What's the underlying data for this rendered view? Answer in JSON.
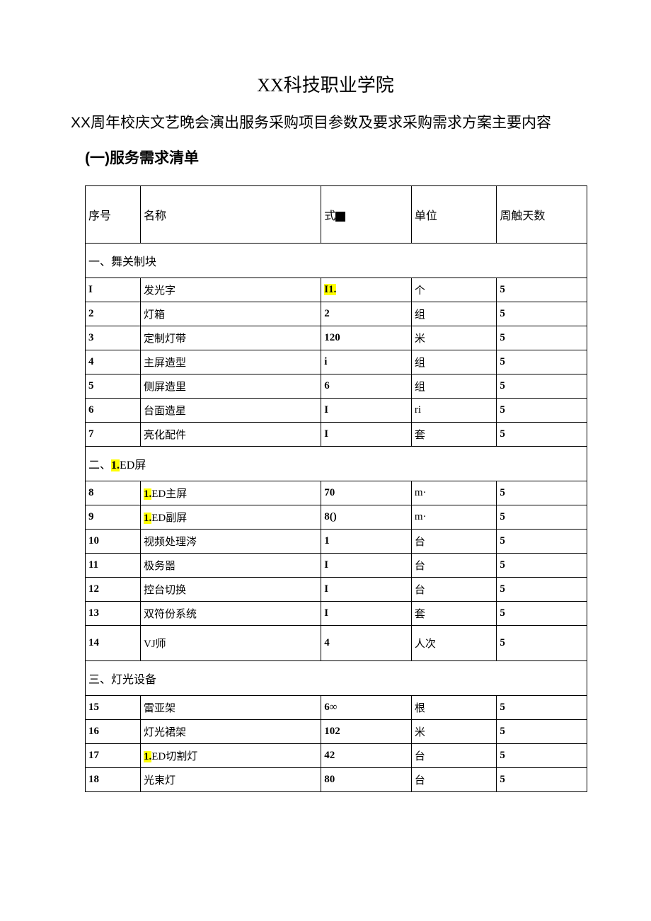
{
  "document": {
    "title_main": "XX科技职业学院",
    "title_sub": "XX周年校庆文艺晚会演出服务采购项目参数及要求采购需求方案主要内容",
    "section_label": "(一)服务需求清单",
    "table": {
      "background_color": "#ffffff",
      "border_color": "#000000",
      "highlight_color": "#ffff00",
      "text_color": "#000000",
      "columns": {
        "seq": "序号",
        "name": "名称",
        "qty_prefix": "式",
        "unit": "单位",
        "days": "周触天数"
      },
      "sections": [
        {
          "title": "一、舞关制块",
          "rows": [
            {
              "seq": "I",
              "name": "发光字",
              "qty": "I1.",
              "qty_highlight": true,
              "unit": "个",
              "days": "5"
            },
            {
              "seq": "2",
              "name": "灯箱",
              "qty": "2",
              "unit": "组",
              "days": "5"
            },
            {
              "seq": "3",
              "name": "定制灯带",
              "qty": "120",
              "unit": "米",
              "days": "5"
            },
            {
              "seq": "4",
              "name": "主屏造型",
              "qty": "i",
              "unit": "组",
              "days": "5"
            },
            {
              "seq": "5",
              "name": "侧屏造里",
              "qty": "6",
              "unit": "组",
              "days": "5"
            },
            {
              "seq": "6",
              "name": "台面造星",
              "qty": "I",
              "unit": "ri",
              "days": "5"
            },
            {
              "seq": "7",
              "name": "亮化配件",
              "qty": "I",
              "unit": "套",
              "days": "5"
            }
          ]
        },
        {
          "title_prefix": "二、",
          "title_highlight": "1.",
          "title_suffix": "ED屏",
          "rows": [
            {
              "seq": "8",
              "name_highlight": "1.",
              "name_suffix": "ED主屏",
              "qty": "70",
              "unit": "m·",
              "days": "5"
            },
            {
              "seq": "9",
              "name_highlight": "1.",
              "name_suffix": "ED副屏",
              "qty": "8()",
              "unit": "m·",
              "days": "5"
            },
            {
              "seq": "10",
              "name": "视频处理涔",
              "qty": "1",
              "unit": "台",
              "days": "5"
            },
            {
              "seq": "11",
              "name": "极务噐",
              "qty": "I",
              "unit": "台",
              "days": "5"
            },
            {
              "seq": "12",
              "name": "控台切换",
              "qty": "I",
              "unit": "台",
              "days": "5"
            },
            {
              "seq": "13",
              "name": "双符份系统",
              "qty": "I",
              "unit": "套",
              "days": "5"
            },
            {
              "seq": "14",
              "name": "VJ师",
              "qty": "4",
              "unit": "人次",
              "days": "5",
              "tall": true
            }
          ]
        },
        {
          "title": "三、灯光设备",
          "rows": [
            {
              "seq": "15",
              "name": "雷亚架",
              "qty": "6∞",
              "unit": "根",
              "days": "5"
            },
            {
              "seq": "16",
              "name": "灯光裙架",
              "qty": "102",
              "unit": "米",
              "days": "5"
            },
            {
              "seq": "17",
              "name_highlight": "1.",
              "name_suffix": "ED切割灯",
              "qty": "42",
              "unit": "台",
              "days": "5"
            },
            {
              "seq": "18",
              "name": "光束灯",
              "qty": "80",
              "unit": "台",
              "days": "5"
            }
          ]
        }
      ]
    }
  }
}
